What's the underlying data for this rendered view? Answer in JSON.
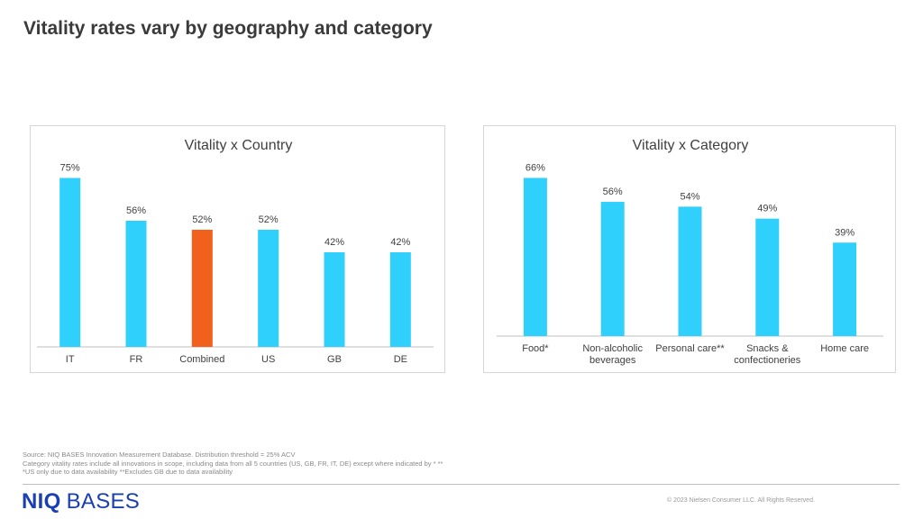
{
  "page": {
    "title": "Vitality rates vary by geography and category"
  },
  "chart_data": [
    {
      "type": "bar",
      "title": "Vitality x Country",
      "categories": [
        "IT",
        "FR",
        "Combined",
        "US",
        "GB",
        "DE"
      ],
      "values": [
        75,
        56,
        52,
        52,
        42,
        42
      ],
      "value_labels": [
        "75%",
        "56%",
        "52%",
        "52%",
        "42%",
        "42%"
      ],
      "bar_colors": [
        "#2fd0fc",
        "#2fd0fc",
        "#f2601e",
        "#2fd0fc",
        "#2fd0fc",
        "#2fd0fc"
      ],
      "ylim": [
        0,
        100
      ],
      "grid": false,
      "legend": "none",
      "xlabel": "",
      "ylabel": ""
    },
    {
      "type": "bar",
      "title": "Vitality x Category",
      "categories": [
        "Food*",
        "Non-alcoholic beverages",
        "Personal care**",
        "Snacks & confectioneries",
        "Home care"
      ],
      "category_lines": [
        [
          "Food*"
        ],
        [
          "Non-alcoholic",
          "beverages"
        ],
        [
          "Personal care**"
        ],
        [
          "Snacks &",
          "confectioneries"
        ],
        [
          "Home care"
        ]
      ],
      "values": [
        66,
        56,
        54,
        49,
        39
      ],
      "value_labels": [
        "66%",
        "56%",
        "54%",
        "49%",
        "39%"
      ],
      "bar_colors": [
        "#2fd0fc",
        "#2fd0fc",
        "#2fd0fc",
        "#2fd0fc",
        "#2fd0fc"
      ],
      "ylim": [
        0,
        100
      ],
      "grid": false,
      "legend": "none",
      "xlabel": "",
      "ylabel": ""
    }
  ],
  "footer": {
    "source": "Source: NIQ BASES Innovation Measurement Database. Distribution threshold = 25% ACV",
    "note1": "Category vitality rates include all innovations in scope, including data from all 5 countries (US, GB, FR, IT, DE) except where indicated by * **",
    "note2": "*US only due to data availability **Excludes GB due to data availability",
    "brand_part1": "NIQ",
    "brand_part2": "BASES",
    "copyright": "© 2023 Nielsen Consumer LLC. All Rights Reserved."
  },
  "colors": {
    "bar_default": "#2fd0fc",
    "bar_highlight": "#f2601e",
    "brand": "#1a3fb3",
    "axis": "#bfbfbf"
  }
}
